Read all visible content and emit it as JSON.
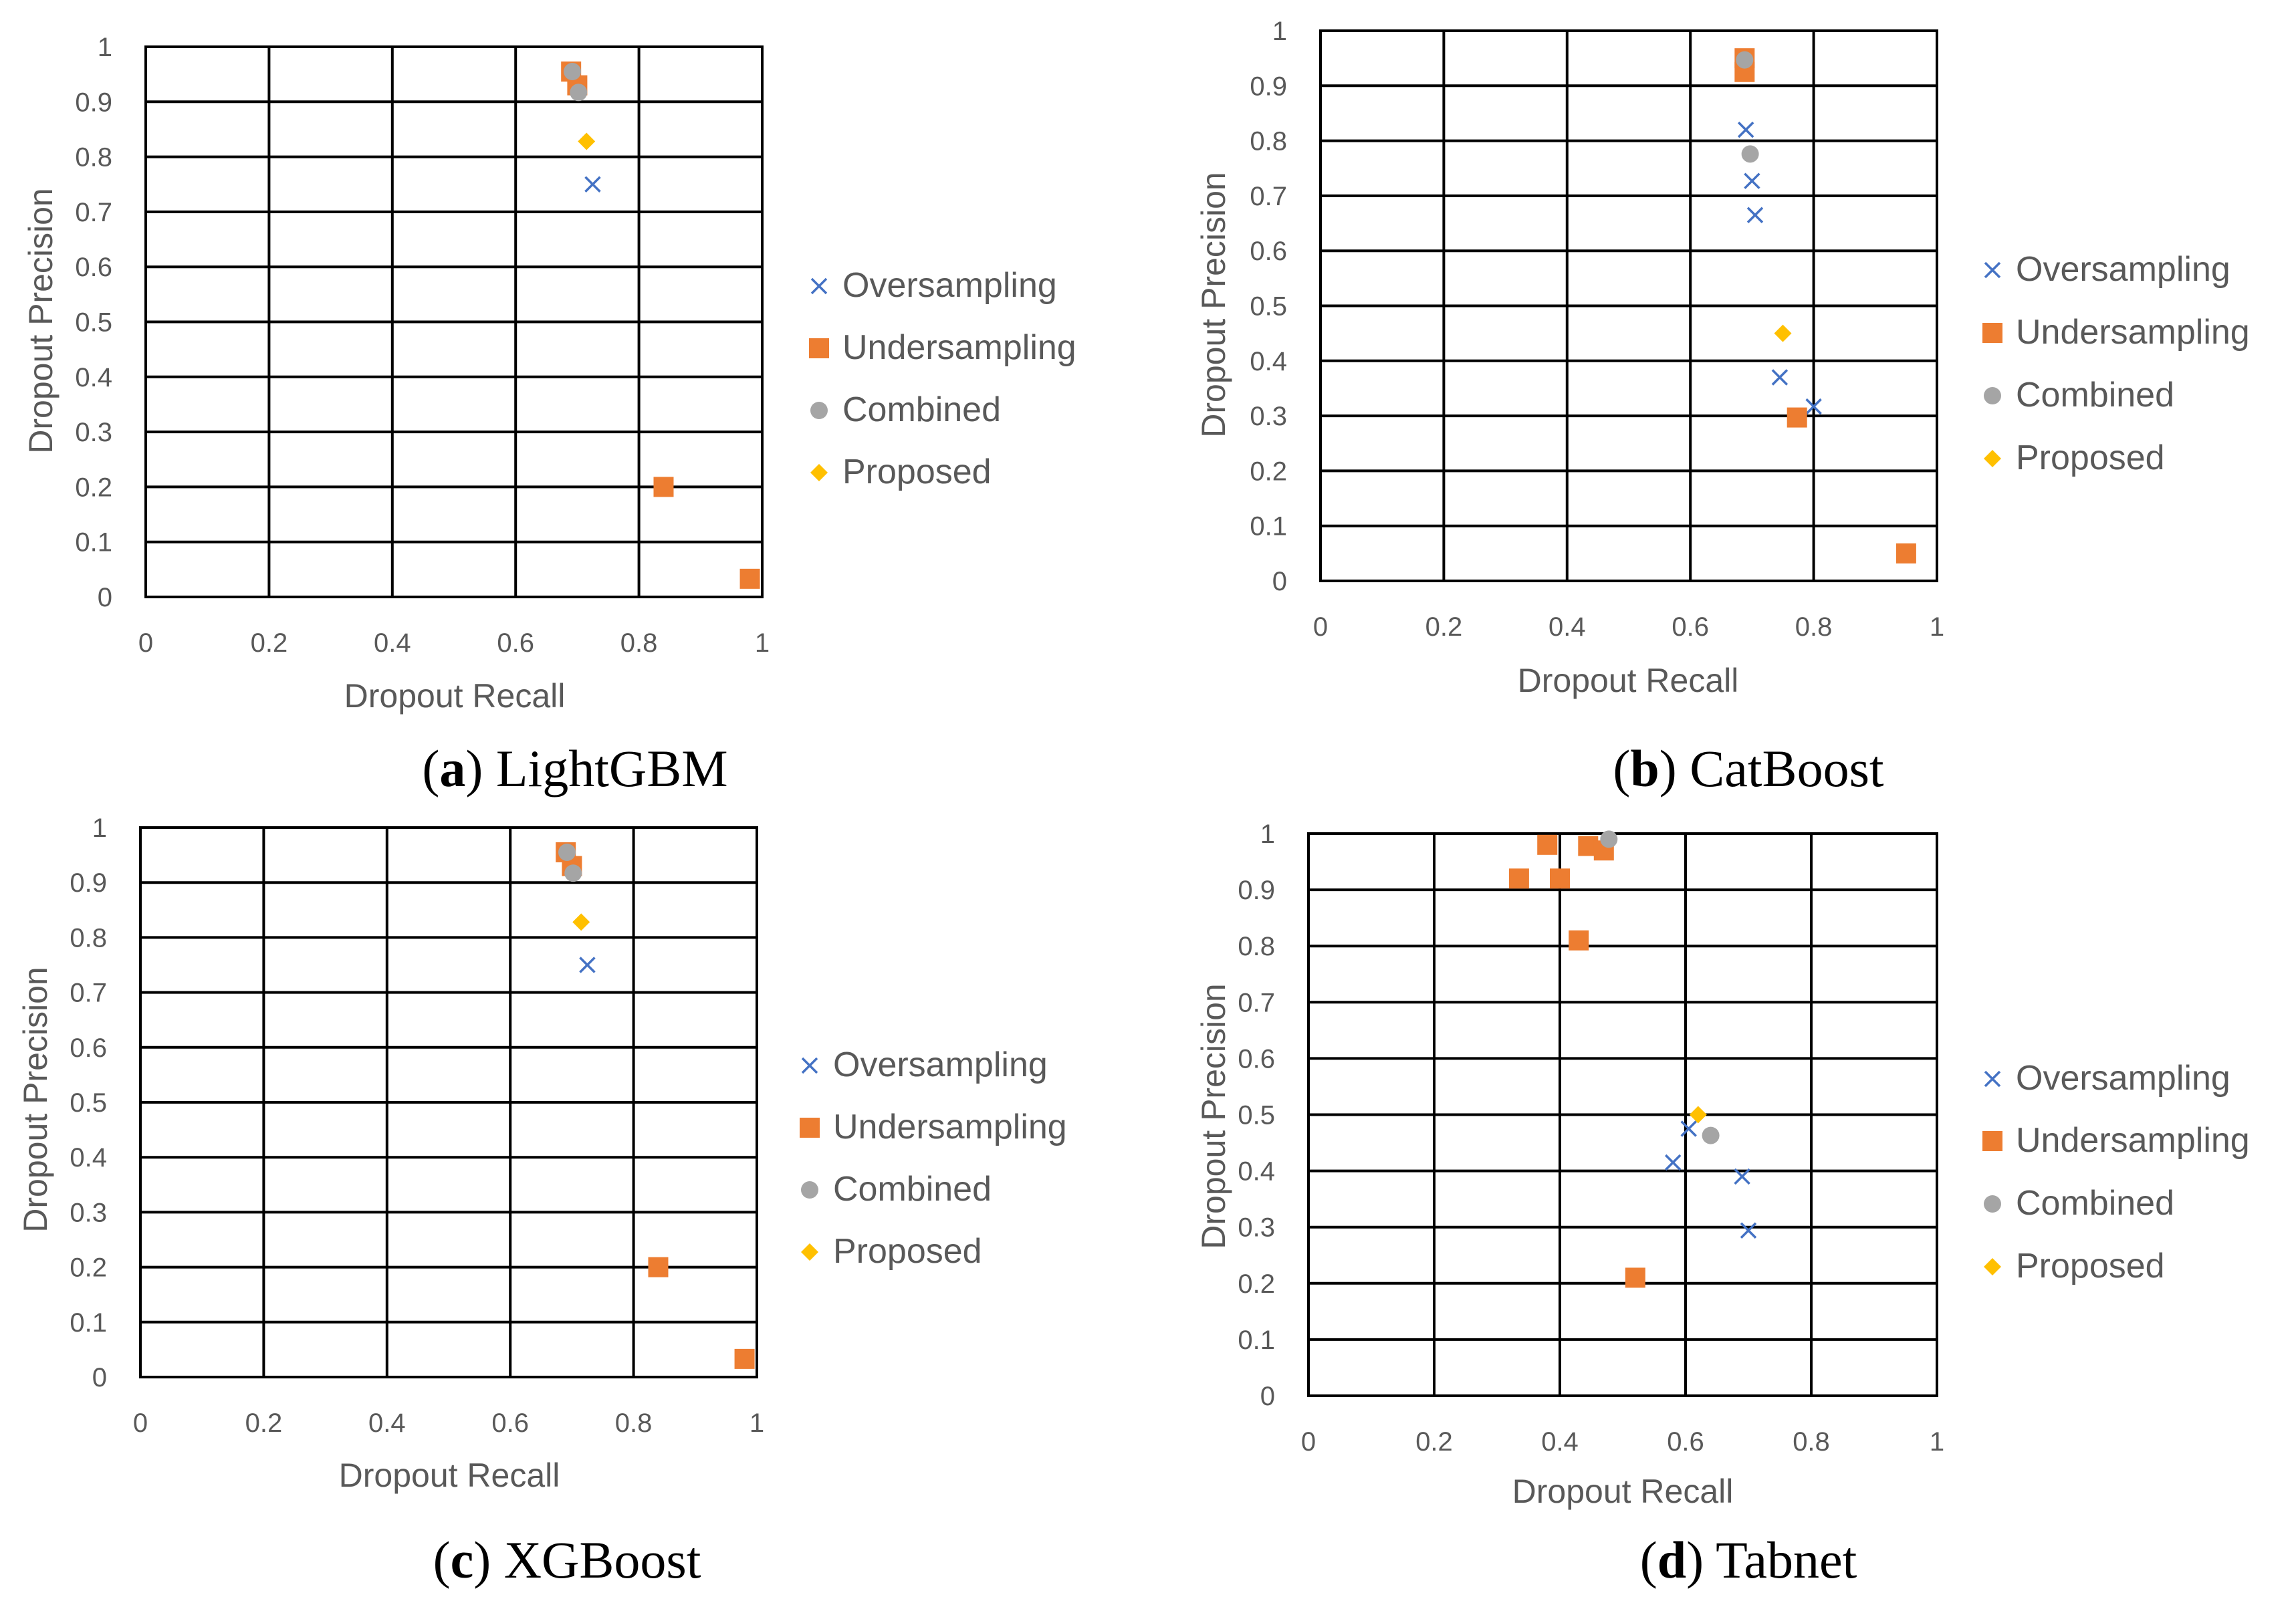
{
  "colors": {
    "Oversampling": "#4472C4",
    "Undersampling": "#ED7D31",
    "Combined": "#A5A5A5",
    "Proposed": "#FFC000"
  },
  "legend_markers": {
    "Oversampling": "cross",
    "Undersampling": "square",
    "Combined": "circle",
    "Proposed": "diamond"
  },
  "chart_data": [
    {
      "id": "lightgbm",
      "type": "scatter",
      "caption_label": "a",
      "caption_text": "LightGBM",
      "xlabel": "Dropout Recall",
      "ylabel": "Dropout Precision",
      "xlim": [
        0,
        1
      ],
      "ylim": [
        0,
        1
      ],
      "x_ticks": [
        "0",
        "0.2",
        "0.4",
        "0.6",
        "0.8",
        "1"
      ],
      "y_ticks": [
        "0",
        "0.1",
        "0.2",
        "0.3",
        "0.4",
        "0.5",
        "0.6",
        "0.7",
        "0.8",
        "0.9",
        "1"
      ],
      "legend": [
        "Oversampling",
        "Undersampling",
        "Combined",
        "Proposed"
      ],
      "series": [
        {
          "name": "Oversampling",
          "points": [
            [
              0.69,
              0.955
            ],
            [
              0.725,
              0.75
            ]
          ]
        },
        {
          "name": "Undersampling",
          "points": [
            [
              0.69,
              0.955
            ],
            [
              0.7,
              0.93
            ],
            [
              0.84,
              0.2
            ],
            [
              0.98,
              0.033
            ]
          ]
        },
        {
          "name": "Combined",
          "points": [
            [
              0.692,
              0.955
            ],
            [
              0.702,
              0.917
            ]
          ]
        },
        {
          "name": "Proposed",
          "points": [
            [
              0.715,
              0.828
            ]
          ]
        }
      ]
    },
    {
      "id": "catboost",
      "type": "scatter",
      "caption_label": "b",
      "caption_text": "CatBoost",
      "xlabel": "Dropout Recall",
      "ylabel": "Dropout Precision",
      "xlim": [
        0,
        1
      ],
      "ylim": [
        0,
        1
      ],
      "x_ticks": [
        "0",
        "0.2",
        "0.4",
        "0.6",
        "0.8",
        "1"
      ],
      "y_ticks": [
        "0",
        "0.1",
        "0.2",
        "0.3",
        "0.4",
        "0.5",
        "0.6",
        "0.7",
        "0.8",
        "0.9",
        "1"
      ],
      "legend": [
        "Oversampling",
        "Undersampling",
        "Combined",
        "Proposed"
      ],
      "series": [
        {
          "name": "Oversampling",
          "points": [
            [
              0.69,
              0.82
            ],
            [
              0.7,
              0.727
            ],
            [
              0.705,
              0.665
            ],
            [
              0.745,
              0.37
            ],
            [
              0.8,
              0.317
            ]
          ]
        },
        {
          "name": "Undersampling",
          "points": [
            [
              0.688,
              0.95
            ],
            [
              0.688,
              0.925
            ],
            [
              0.773,
              0.297
            ],
            [
              0.95,
              0.05
            ]
          ]
        },
        {
          "name": "Combined",
          "points": [
            [
              0.688,
              0.947
            ],
            [
              0.697,
              0.776
            ]
          ]
        },
        {
          "name": "Proposed",
          "points": [
            [
              0.75,
              0.45
            ]
          ]
        }
      ]
    },
    {
      "id": "xgboost",
      "type": "scatter",
      "caption_label": "c",
      "caption_text": "XGBoost",
      "xlabel": "Dropout Recall",
      "ylabel": "Dropout Precision",
      "xlim": [
        0,
        1
      ],
      "ylim": [
        0,
        1
      ],
      "x_ticks": [
        "0",
        "0.2",
        "0.4",
        "0.6",
        "0.8",
        "1"
      ],
      "y_ticks": [
        "0",
        "0.1",
        "0.2",
        "0.3",
        "0.4",
        "0.5",
        "0.6",
        "0.7",
        "0.8",
        "0.9",
        "1"
      ],
      "legend": [
        "Oversampling",
        "Undersampling",
        "Combined",
        "Proposed"
      ],
      "series": [
        {
          "name": "Oversampling",
          "points": [
            [
              0.69,
              0.955
            ],
            [
              0.725,
              0.75
            ]
          ]
        },
        {
          "name": "Undersampling",
          "points": [
            [
              0.69,
              0.955
            ],
            [
              0.7,
              0.93
            ],
            [
              0.84,
              0.2
            ],
            [
              0.98,
              0.033
            ]
          ]
        },
        {
          "name": "Combined",
          "points": [
            [
              0.692,
              0.955
            ],
            [
              0.702,
              0.917
            ]
          ]
        },
        {
          "name": "Proposed",
          "points": [
            [
              0.715,
              0.828
            ]
          ]
        }
      ]
    },
    {
      "id": "tabnet",
      "type": "scatter",
      "caption_label": "d",
      "caption_text": "Tabnet",
      "xlabel": "Dropout Recall",
      "ylabel": "Dropout Precision",
      "xlim": [
        0,
        1
      ],
      "ylim": [
        0,
        1
      ],
      "x_ticks": [
        "0",
        "0.2",
        "0.4",
        "0.6",
        "0.8",
        "1"
      ],
      "y_ticks": [
        "0",
        "0.1",
        "0.2",
        "0.3",
        "0.4",
        "0.5",
        "0.6",
        "0.7",
        "0.8",
        "0.9",
        "1"
      ],
      "legend": [
        "Oversampling",
        "Undersampling",
        "Combined",
        "Proposed"
      ],
      "series": [
        {
          "name": "Oversampling",
          "points": [
            [
              0.605,
              0.475
            ],
            [
              0.58,
              0.415
            ],
            [
              0.69,
              0.39
            ],
            [
              0.7,
              0.294
            ]
          ]
        },
        {
          "name": "Undersampling",
          "points": [
            [
              0.335,
              0.92
            ],
            [
              0.38,
              0.98
            ],
            [
              0.4,
              0.92
            ],
            [
              0.43,
              0.81
            ],
            [
              0.445,
              0.978
            ],
            [
              0.47,
              0.97
            ],
            [
              0.52,
              0.21
            ]
          ]
        },
        {
          "name": "Combined",
          "points": [
            [
              0.478,
              0.99
            ],
            [
              0.64,
              0.463
            ]
          ]
        },
        {
          "name": "Proposed",
          "points": [
            [
              0.62,
              0.5
            ]
          ]
        }
      ]
    }
  ]
}
